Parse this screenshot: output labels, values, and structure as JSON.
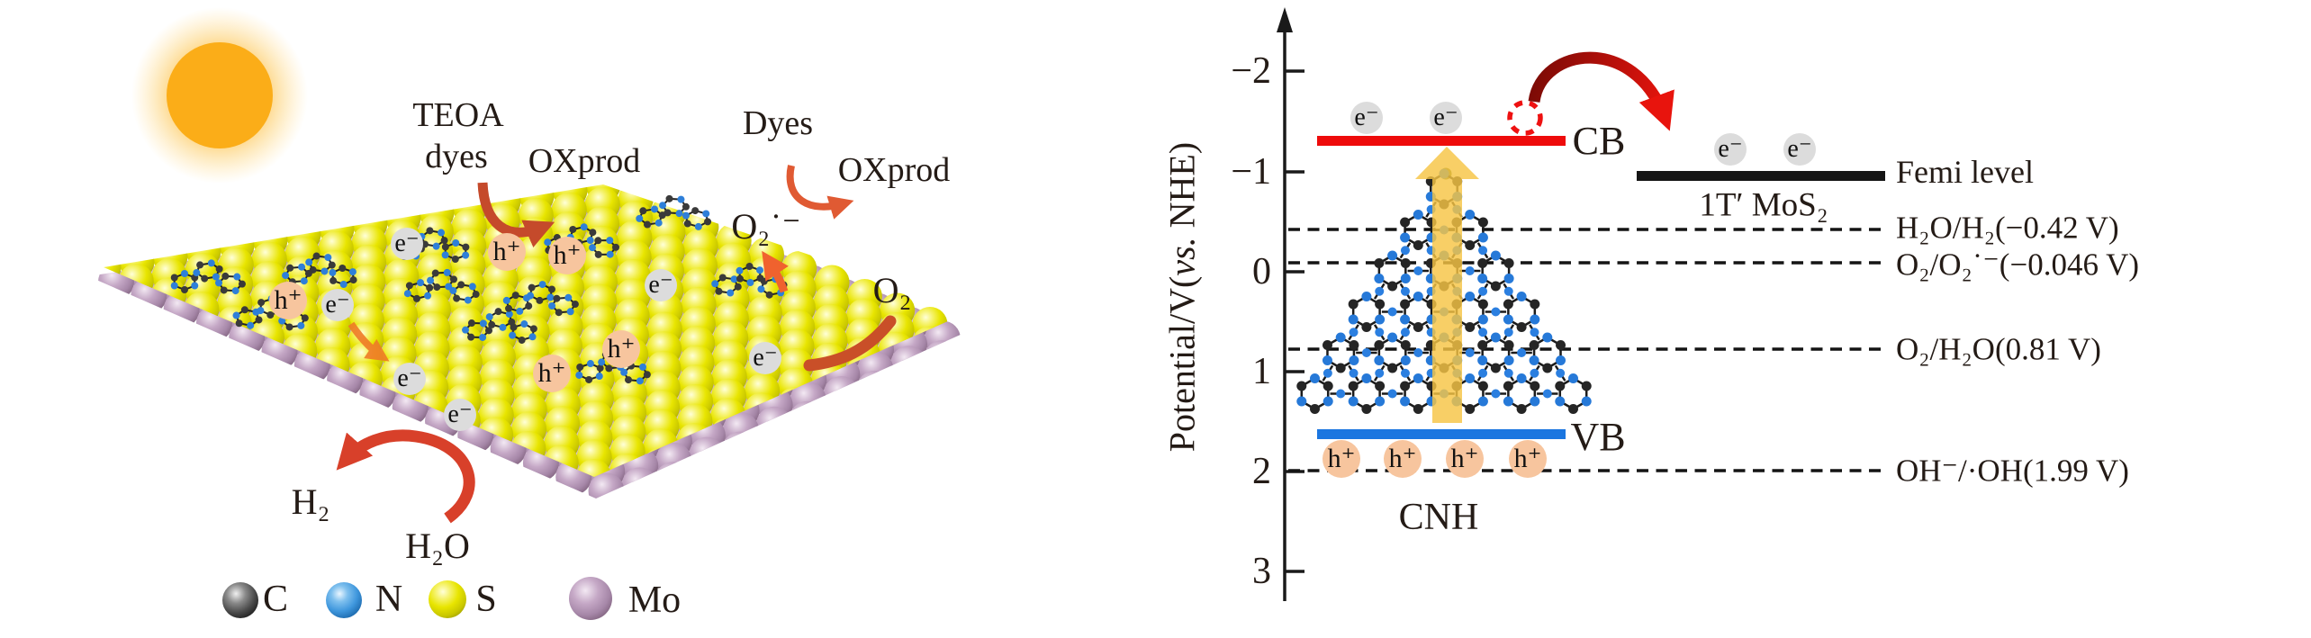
{
  "figure": {
    "background": "#ffffff"
  },
  "left_panel": {
    "sun_color": "#FBAD18",
    "labels": {
      "teoa": "TEOA",
      "dyes": "dyes",
      "oxprod": "OXprod",
      "dyes2": "Dyes",
      "oxprod2": "OXprod",
      "superoxide": "O₂˙⁻",
      "o2": "O₂",
      "h2": "H₂",
      "h2o": "H₂O"
    },
    "badges": {
      "electron": "e⁻",
      "hole": "h⁺"
    },
    "legend": {
      "items": [
        {
          "symbol": "C",
          "color": "#5a5a5a"
        },
        {
          "symbol": "N",
          "color": "#4496dc"
        },
        {
          "symbol": "S",
          "color": "#e8e400"
        },
        {
          "symbol": "Mo",
          "color": "#b697b6"
        }
      ]
    }
  },
  "band_diagram": {
    "axis": {
      "title_pre": "Potential/V(",
      "title_vs": "vs.",
      "title_post": " NHE)",
      "ticks": [
        "−2",
        "−1",
        "0",
        "1",
        "2",
        "3"
      ]
    },
    "cb_label": "CB",
    "vb_label": "VB",
    "cnh_label": "CNH",
    "mos2_label": "1T′ MoS₂",
    "fermi_label": "Femi level",
    "badges": {
      "electron": "e⁻",
      "hole": "h⁺"
    },
    "redox_levels": [
      {
        "label": "H₂O/H₂(−0.42 V)",
        "value_v": "−0.42"
      },
      {
        "label": "O₂/O₂˙⁻(−0.046 V)",
        "value_v": "−0.046"
      },
      {
        "label": "O₂/H₂O(0.81 V)",
        "value_v": "0.81"
      },
      {
        "label": "OH⁻/·OH(1.99 V)",
        "value_v": "1.99"
      }
    ],
    "band_colors": {
      "cb": "#ee0b0b",
      "vb": "#1b76e0",
      "fermi": "#151515"
    }
  }
}
